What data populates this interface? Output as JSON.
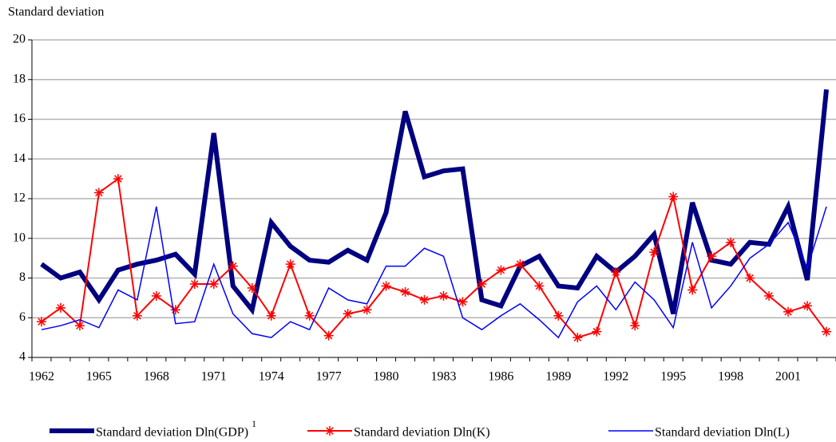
{
  "chart_data": {
    "type": "line",
    "y_axis_label": "Standard deviation",
    "categories": [
      "1962",
      null,
      null,
      "1965",
      null,
      null,
      "1968",
      null,
      null,
      "1971",
      null,
      null,
      "1974",
      null,
      null,
      "1977",
      null,
      null,
      "1980",
      null,
      null,
      "1983",
      null,
      null,
      "1986",
      null,
      null,
      "1989",
      null,
      null,
      "1992",
      null,
      null,
      "1995",
      null,
      null,
      "1998",
      null,
      null,
      "2001",
      null,
      null
    ],
    "ylim": [
      4,
      20
    ],
    "yticks": [
      4,
      6,
      8,
      10,
      12,
      14,
      16,
      18,
      20
    ],
    "grid": true,
    "series": [
      {
        "name": "Standard deviation Dln(GDP)",
        "name_superscript": "1",
        "color": "#000080",
        "width": 6,
        "marker": "none",
        "values": [
          8.7,
          8.0,
          8.3,
          6.9,
          8.4,
          8.7,
          8.9,
          9.2,
          8.2,
          15.3,
          7.6,
          6.4,
          10.8,
          9.6,
          8.9,
          8.8,
          9.4,
          8.9,
          11.3,
          16.4,
          13.1,
          13.4,
          13.5,
          6.9,
          6.6,
          8.6,
          9.1,
          7.6,
          7.5,
          9.1,
          8.3,
          9.1,
          10.2,
          6.2,
          11.8,
          8.9,
          8.7,
          9.8,
          9.7,
          11.6,
          7.9,
          17.5
        ]
      },
      {
        "name": "Standard deviation Dln(K)",
        "color": "#ff0000",
        "width": 2,
        "marker": "star",
        "values": [
          5.8,
          6.5,
          5.6,
          12.3,
          13.0,
          6.1,
          7.1,
          6.4,
          7.7,
          7.7,
          8.6,
          7.5,
          6.1,
          8.7,
          6.1,
          5.1,
          6.2,
          6.4,
          7.6,
          7.3,
          6.9,
          7.1,
          6.8,
          7.7,
          8.4,
          8.7,
          7.6,
          6.1,
          5.0,
          5.3,
          8.3,
          5.6,
          9.3,
          12.1,
          7.4,
          9.1,
          9.8,
          8.0,
          7.1,
          6.3,
          6.6,
          5.3
        ]
      },
      {
        "name": "Standard deviation Dln(L)",
        "color": "#0000ff",
        "width": 1.5,
        "marker": "none",
        "values": [
          5.4,
          5.6,
          5.9,
          5.5,
          7.4,
          6.9,
          11.6,
          5.7,
          5.8,
          8.7,
          6.2,
          5.2,
          5.0,
          5.8,
          5.4,
          7.5,
          6.9,
          6.7,
          8.6,
          8.6,
          9.5,
          9.1,
          6.0,
          5.4,
          6.1,
          6.7,
          5.9,
          5.0,
          6.8,
          7.6,
          6.4,
          7.8,
          6.9,
          5.5,
          9.8,
          6.5,
          7.6,
          9.0,
          9.7,
          10.8,
          8.5,
          11.6
        ]
      }
    ]
  }
}
